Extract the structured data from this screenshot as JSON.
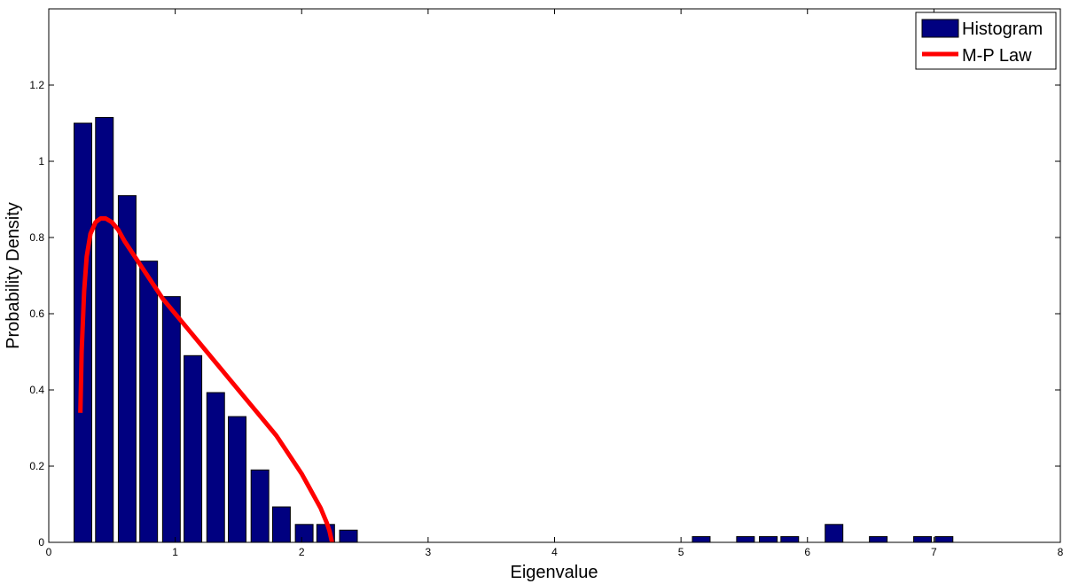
{
  "chart_data": {
    "type": "bar",
    "xlabel": "Eigenvalue",
    "ylabel": "Probability Density",
    "xlim": [
      0,
      8
    ],
    "ylim": [
      0,
      1.4
    ],
    "x_ticks": [
      0,
      1,
      2,
      3,
      4,
      5,
      6,
      7,
      8
    ],
    "y_ticks": [
      0,
      0.2,
      0.4,
      0.6,
      0.8,
      1,
      1.2
    ],
    "y_tick_labels": [
      "0",
      "0.2",
      "0.4",
      "0.6",
      "0.8",
      "1",
      "1.2"
    ],
    "grid": false,
    "legend_position": "top-right",
    "bar_color": "#000080",
    "line_color": "#ff0000",
    "histogram": {
      "name": "Histogram",
      "bar_width": 0.14,
      "x": [
        0.27,
        0.44,
        0.62,
        0.79,
        0.97,
        1.14,
        1.32,
        1.49,
        1.67,
        1.84,
        2.02,
        2.19,
        2.37,
        5.16,
        5.51,
        5.69,
        5.86,
        6.21,
        6.56,
        6.91,
        7.08
      ],
      "values": [
        1.1,
        1.115,
        0.91,
        0.738,
        0.645,
        0.49,
        0.393,
        0.33,
        0.19,
        0.093,
        0.047,
        0.047,
        0.032,
        0.015,
        0.015,
        0.015,
        0.015,
        0.047,
        0.015,
        0.015,
        0.015
      ]
    },
    "mp_law": {
      "name": "M-P Law",
      "x": [
        0.25,
        0.26,
        0.28,
        0.3,
        0.33,
        0.37,
        0.41,
        0.45,
        0.5,
        0.55,
        0.6,
        0.7,
        0.8,
        0.9,
        1.0,
        1.1,
        1.2,
        1.3,
        1.4,
        1.5,
        1.6,
        1.7,
        1.8,
        1.9,
        2.0,
        2.05,
        2.1,
        2.15,
        2.2,
        2.22,
        2.24
      ],
      "values": [
        0.34,
        0.5,
        0.66,
        0.75,
        0.81,
        0.84,
        0.85,
        0.85,
        0.84,
        0.82,
        0.79,
        0.74,
        0.69,
        0.64,
        0.6,
        0.56,
        0.52,
        0.48,
        0.44,
        0.4,
        0.36,
        0.32,
        0.28,
        0.23,
        0.18,
        0.15,
        0.12,
        0.09,
        0.05,
        0.03,
        0.0
      ]
    }
  }
}
